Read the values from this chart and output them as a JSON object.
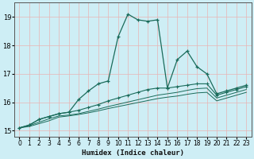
{
  "xlabel": "Humidex (Indice chaleur)",
  "background_color": "#ceeef5",
  "grid_color": "#e8b4b4",
  "line_color": "#1a6b5a",
  "xlim": [
    -0.5,
    23.5
  ],
  "ylim": [
    14.8,
    19.5
  ],
  "xticks": [
    0,
    1,
    2,
    3,
    4,
    5,
    6,
    7,
    8,
    9,
    10,
    11,
    12,
    13,
    14,
    15,
    16,
    17,
    18,
    19,
    20,
    21,
    22,
    23
  ],
  "yticks": [
    15,
    16,
    17,
    18,
    19
  ],
  "line1_x": [
    0,
    1,
    2,
    3,
    4,
    5,
    6,
    7,
    8,
    9,
    10,
    11,
    12,
    13,
    14,
    15,
    16,
    17,
    18,
    19,
    20,
    21,
    22,
    23
  ],
  "line1_y": [
    15.1,
    15.2,
    15.4,
    15.5,
    15.6,
    15.65,
    16.1,
    16.4,
    16.65,
    16.75,
    18.3,
    19.1,
    18.9,
    18.85,
    18.9,
    16.5,
    17.5,
    17.8,
    17.25,
    17.0,
    16.3,
    16.4,
    16.5,
    16.6
  ],
  "line2_x": [
    0,
    1,
    2,
    3,
    4,
    5,
    6,
    7,
    8,
    9,
    10,
    11,
    12,
    13,
    14,
    15,
    16,
    17,
    18,
    19,
    20,
    21,
    22,
    23
  ],
  "line2_y": [
    15.1,
    15.2,
    15.4,
    15.5,
    15.6,
    15.65,
    15.72,
    15.82,
    15.92,
    16.05,
    16.15,
    16.25,
    16.35,
    16.45,
    16.5,
    16.5,
    16.55,
    16.6,
    16.65,
    16.65,
    16.25,
    16.35,
    16.45,
    16.55
  ],
  "line3_x": [
    0,
    1,
    2,
    3,
    4,
    5,
    6,
    7,
    8,
    9,
    10,
    11,
    12,
    13,
    14,
    15,
    16,
    17,
    18,
    19,
    20,
    21,
    22,
    23
  ],
  "line3_y": [
    15.1,
    15.18,
    15.3,
    15.42,
    15.52,
    15.55,
    15.6,
    15.68,
    15.76,
    15.85,
    15.93,
    16.01,
    16.09,
    16.17,
    16.25,
    16.3,
    16.35,
    16.42,
    16.48,
    16.5,
    16.15,
    16.25,
    16.35,
    16.45
  ],
  "line4_x": [
    0,
    1,
    2,
    3,
    4,
    5,
    6,
    7,
    8,
    9,
    10,
    11,
    12,
    13,
    14,
    15,
    16,
    17,
    18,
    19,
    20,
    21,
    22,
    23
  ],
  "line4_y": [
    15.1,
    15.15,
    15.25,
    15.35,
    15.48,
    15.52,
    15.57,
    15.63,
    15.7,
    15.78,
    15.85,
    15.92,
    15.99,
    16.06,
    16.13,
    16.18,
    16.22,
    16.28,
    16.33,
    16.35,
    16.05,
    16.15,
    16.25,
    16.35
  ]
}
